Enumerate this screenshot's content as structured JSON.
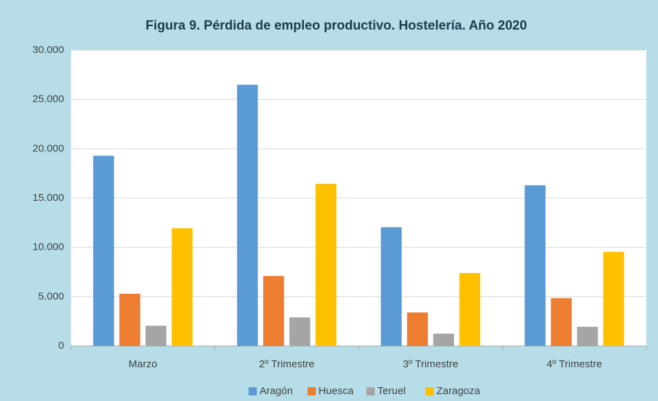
{
  "chart_data": {
    "type": "bar",
    "title": "Figura 9. Pérdida de empleo productivo. Hostelería. Año 2020",
    "categories": [
      "Marzo",
      "2º Trimestre",
      "3º Trimestre",
      "4º Trimestre"
    ],
    "series": [
      {
        "name": "Aragón",
        "color": "#5b9bd5",
        "values": [
          19300,
          26500,
          12050,
          16300
        ]
      },
      {
        "name": "Huesca",
        "color": "#ed7d31",
        "values": [
          5300,
          7100,
          3400,
          4850
        ]
      },
      {
        "name": "Teruel",
        "color": "#a5a5a5",
        "values": [
          2050,
          2900,
          1250,
          1950
        ]
      },
      {
        "name": "Zaragoza",
        "color": "#ffc000",
        "values": [
          11950,
          16450,
          7400,
          9550
        ]
      }
    ],
    "ylim": [
      0,
      30000
    ],
    "yticks": [
      0,
      {
        "value": 5000,
        "label": "5.000"
      },
      {
        "value": 10000,
        "label": "10.000"
      },
      {
        "value": 15000,
        "label": "15.000"
      },
      {
        "value": 20000,
        "label": "20.000"
      },
      {
        "value": 25000,
        "label": "25.000"
      },
      {
        "value": 30000,
        "label": "30.000"
      }
    ],
    "grid": true,
    "legend": "bottom"
  }
}
